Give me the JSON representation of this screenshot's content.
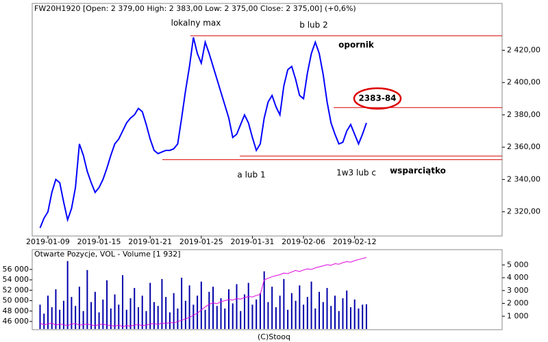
{
  "header": "FW20H1920 [Open: 2 379,00  High: 2 383,00  Low: 2 375,00  Close: 2 375,00] (+0,6%)",
  "footer": "(C)Stooq",
  "chart_data": [
    {
      "type": "line",
      "categories": [
        null,
        null,
        "2019-01-09",
        null,
        null,
        null,
        null,
        null,
        null,
        null,
        null,
        null,
        null,
        null,
        null,
        "2019-01-15",
        null,
        null,
        null,
        null,
        null,
        null,
        null,
        null,
        null,
        null,
        null,
        null,
        "2019-01-21",
        null,
        null,
        null,
        null,
        null,
        null,
        null,
        null,
        null,
        null,
        null,
        null,
        "2019-01-25",
        null,
        null,
        null,
        null,
        null,
        null,
        null,
        null,
        null,
        null,
        null,
        null,
        "2019-01-31",
        null,
        null,
        null,
        null,
        null,
        null,
        null,
        null,
        null,
        null,
        null,
        null,
        "2019-02-06",
        null,
        null,
        null,
        null,
        null,
        null,
        null,
        null,
        null,
        null,
        null,
        null,
        "2019-02-12",
        null,
        null,
        null
      ],
      "series": [
        {
          "color": "#0000ff",
          "values": [
            2310,
            2316,
            2320,
            2332,
            2340,
            2338,
            2326,
            2315,
            2322,
            2335,
            2362,
            2355,
            2345,
            2338,
            2332,
            2335,
            2340,
            2347,
            2355,
            2362,
            2365,
            2370,
            2375,
            2378,
            2380,
            2384,
            2382,
            2374,
            2365,
            2358,
            2356,
            2357,
            2358,
            2358,
            2359,
            2362,
            2378,
            2395,
            2410,
            2428,
            2418,
            2412,
            2425,
            2418,
            2410,
            2402,
            2394,
            2386,
            2378,
            2366,
            2368,
            2374,
            2380,
            2375,
            2366,
            2358,
            2362,
            2378,
            2388,
            2392,
            2385,
            2380,
            2398,
            2408,
            2410,
            2402,
            2392,
            2390,
            2406,
            2418,
            2425,
            2418,
            2405,
            2388,
            2375,
            2368,
            2362,
            2363,
            2370,
            2374,
            2368,
            2362,
            2368,
            2375
          ]
        }
      ],
      "ylim": [
        2305,
        2449
      ],
      "yticks": [
        {
          "value": 2320,
          "label": "2 320,00"
        },
        {
          "value": 2340,
          "label": "2 340,00"
        },
        {
          "value": 2360,
          "label": "2 360,00"
        },
        {
          "value": 2380,
          "label": "2 380,00"
        },
        {
          "value": 2400,
          "label": "2 400,00"
        },
        {
          "value": 2420,
          "label": "2 420,00"
        }
      ],
      "levels": [
        {
          "value": 2429,
          "label": "opornik",
          "color": "#dd0000"
        },
        {
          "value": 2384.5,
          "label": "2383-84",
          "color": "#dd0000"
        },
        {
          "value": 2354.5,
          "color": "#dd0000"
        },
        {
          "value": 2352.3,
          "label": "wsparciątko",
          "color": "#dd0000"
        }
      ],
      "annotations": [
        "lokalny max",
        "b lub 2",
        "a lub 1",
        "1w3 lub c"
      ]
    },
    {
      "type": "bar",
      "title": "Otwarte Pozycje, VOL - Volume [1 932]",
      "series": [
        {
          "name": "VOL",
          "axis": "y2",
          "color": "#0000aa",
          "values": [
            1900,
            1200,
            2600,
            1700,
            3100,
            1500,
            2200,
            5300,
            2500,
            1800,
            3300,
            1400,
            4600,
            2100,
            2900,
            1300,
            2300,
            3800,
            1600,
            2700,
            1900,
            4200,
            1500,
            2400,
            3200,
            1700,
            2600,
            1400,
            3600,
            2100,
            1800,
            3900,
            2500,
            1300,
            2800,
            1600,
            4000,
            2200,
            3400,
            1900,
            2600,
            3700,
            1500,
            2900,
            3300,
            1800,
            2400,
            1600,
            3100,
            2000,
            3500,
            1400,
            2700,
            3600,
            1900,
            2300,
            2800,
            4500,
            2100,
            3300,
            1700,
            2600,
            3900,
            1500,
            2800,
            2200,
            3400,
            1900,
            2500,
            3700,
            1600,
            2900,
            2100,
            3200,
            1800,
            2600,
            1400,
            2400,
            3000,
            1700,
            2300,
            1600,
            1900,
            1932
          ]
        },
        {
          "name": "Otwarte Pozycje",
          "color": "#dd00dd",
          "values": [
            45600,
            45400,
            45500,
            45700,
            45300,
            45500,
            45400,
            45200,
            45500,
            45600,
            45300,
            45400,
            45500,
            45300,
            45200,
            45400,
            45500,
            45300,
            45200,
            45100,
            45300,
            45000,
            45200,
            45100,
            45300,
            45400,
            45200,
            45300,
            45500,
            45600,
            45400,
            45700,
            45600,
            45800,
            45700,
            46000,
            46200,
            46500,
            46800,
            47200,
            47600,
            48200,
            48800,
            49300,
            49600,
            49400,
            49800,
            50000,
            50200,
            50100,
            50400,
            50300,
            50600,
            50800,
            50700,
            51000,
            51200,
            54000,
            54300,
            54600,
            54800,
            55000,
            55300,
            55200,
            55500,
            55800,
            55600,
            55900,
            56100,
            56000,
            56300,
            56500,
            56700,
            56900,
            56800,
            57100,
            57000,
            57300,
            57500,
            57400,
            57700,
            57900,
            58100,
            58300
          ]
        }
      ],
      "ylim": [
        44550,
        59800
      ],
      "yticks": [
        {
          "value": 46000,
          "label": "46 000"
        },
        {
          "value": 48000,
          "label": "48 000"
        },
        {
          "value": 50000,
          "label": "50 000"
        },
        {
          "value": 52000,
          "label": "52 000"
        },
        {
          "value": 54000,
          "label": "54 000"
        },
        {
          "value": 56000,
          "label": "56 000"
        }
      ],
      "y2lim": [
        0,
        6190
      ],
      "y2ticks": [
        {
          "value": 1000,
          "label": "1 000"
        },
        {
          "value": 2000,
          "label": "2 000"
        },
        {
          "value": 3000,
          "label": "3 000"
        },
        {
          "value": 4000,
          "label": "4 000"
        },
        {
          "value": 5000,
          "label": "5 000"
        }
      ]
    }
  ]
}
